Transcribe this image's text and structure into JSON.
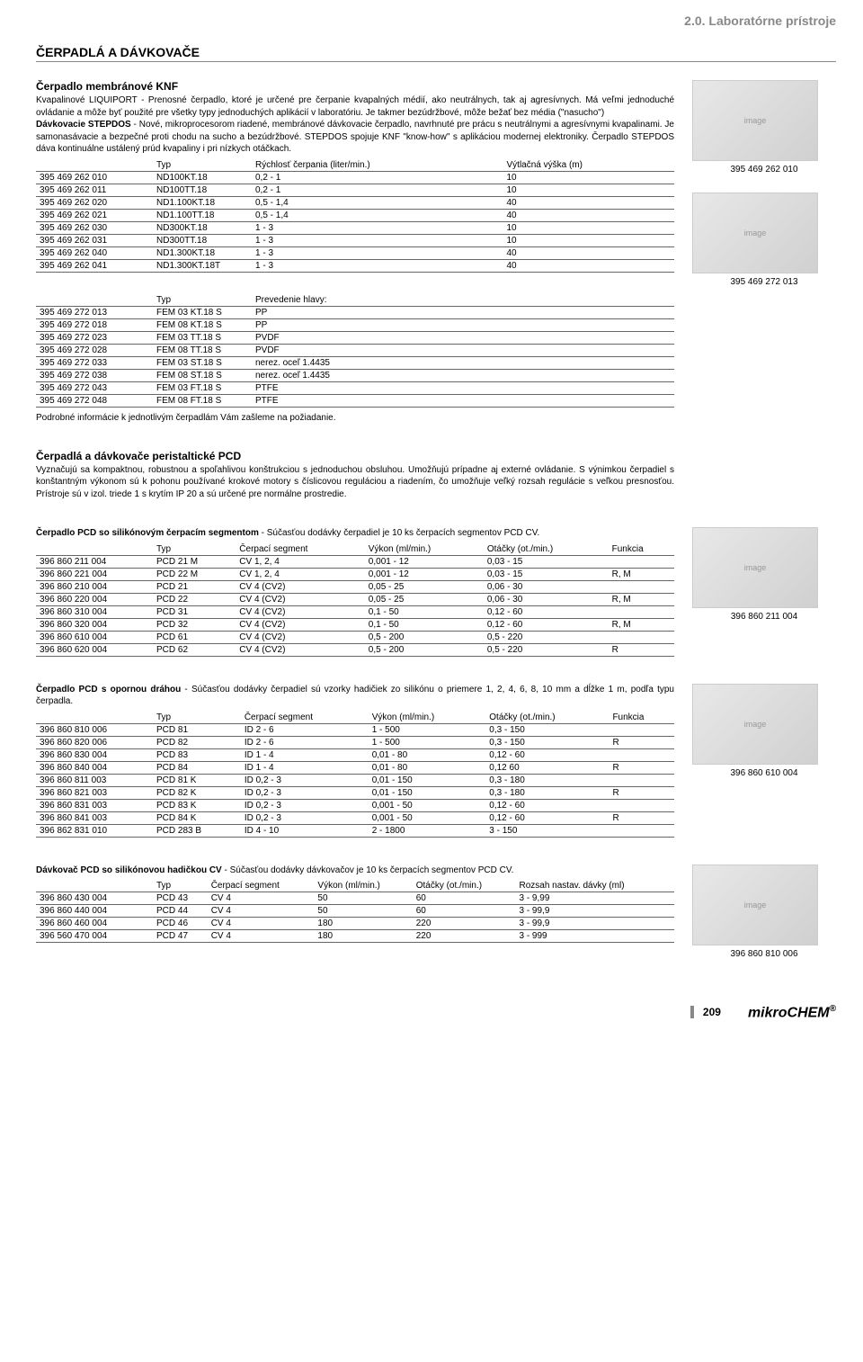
{
  "header": {
    "breadcrumb": "2.0. Laboratórne prístroje"
  },
  "title": "ČERPADLÁ A DÁVKOVAČE",
  "section1": {
    "heading": "Čerpadlo membránové KNF",
    "text": "Kvapalinové LIQUIPORT - Prenosné čerpadlo, ktoré je určené pre čerpanie kvapalných médií, ako neutrálnych, tak aj agresívnych. Má veľmi jednoduché ovládanie a môže byť použité pre všetky typy jednoduchých aplikácií v laboratóriu. Je takmer bezúdržbové, môže bežať bez média (\"nasucho\")",
    "text2b": "Dávkovacie STEPDOS",
    "text2": " - Nové, mikroprocesorom riadené, membránové dávkovacie čerpadlo, navrhnuté pre prácu s neutrálnymi a agresívnymi kvapalinami. Je samonasávacie a bezpečné proti chodu na sucho a bezúdržbové. STEPDOS spojuje KNF \"know-how\" s aplikáciou modernej elektroniky. Čerpadlo STEPDOS dáva kontinuálne ustálený prúd kvapaliny i pri nízkych otáčkach.",
    "table1": {
      "headers": [
        "",
        "Typ",
        "Rýchlosť čerpania (liter/min.)",
        "Výtlačná výška (m)"
      ],
      "rows": [
        [
          "395 469 262 010",
          "ND100KT.18",
          "0,2 - 1",
          "10"
        ],
        [
          "395 469 262 011",
          "ND100TT.18",
          "0,2 - 1",
          "10"
        ],
        [
          "395 469 262 020",
          "ND1.100KT.18",
          "0,5 - 1,4",
          "40"
        ],
        [
          "395 469 262 021",
          "ND1.100TT.18",
          "0,5 - 1,4",
          "40"
        ],
        [
          "395 469 262 030",
          "ND300KT.18",
          "1 - 3",
          "10"
        ],
        [
          "395 469 262 031",
          "ND300TT.18",
          "1 - 3",
          "10"
        ],
        [
          "395 469 262 040",
          "ND1.300KT.18",
          "1 - 3",
          "40"
        ],
        [
          "395 469 262 041",
          "ND1.300KT.18T",
          "1 - 3",
          "40"
        ]
      ]
    },
    "table2": {
      "headers": [
        "",
        "Typ",
        "Prevedenie hlavy:"
      ],
      "rows": [
        [
          "395 469 272 013",
          "FEM 03 KT.18 S",
          "PP"
        ],
        [
          "395 469 272 018",
          "FEM 08 KT.18 S",
          "PP"
        ],
        [
          "395 469 272 023",
          "FEM 03 TT.18 S",
          "PVDF"
        ],
        [
          "395 469 272 028",
          "FEM 08 TT.18 S",
          "PVDF"
        ],
        [
          "395 469 272 033",
          "FEM 03 ST.18 S",
          "nerez. oceľ 1.4435"
        ],
        [
          "395 469 272 038",
          "FEM 08 ST.18 S",
          "nerez. oceľ 1.4435"
        ],
        [
          "395 469 272 043",
          "FEM 03 FT.18 S",
          "PTFE"
        ],
        [
          "395 469 272 048",
          "FEM 08 FT.18 S",
          "PTFE"
        ]
      ]
    },
    "note": "Podrobné informácie k jednotlivým čerpadlám Vám zašleme na požiadanie.",
    "img1_caption": "395 469 262 010",
    "img2_caption": "395 469 272 013"
  },
  "section2": {
    "heading": "Čerpadlá a dávkovače peristaltické PCD",
    "text": "Vyznačujú sa kompaktnou, robustnou a spoľahlivou konštrukciou s jednoduchou obsluhou. Umožňujú prípadne aj externé ovládanie. S výnimkou čerpadiel s konštantným výkonom sú k pohonu používané krokové motory s číslicovou reguláciou a riadením, čo umožňuje veľký rozsah regulácie s veľkou presnosťou. Prístroje sú v izol. triede 1 s krytím IP 20 a sú určené pre normálne prostredie."
  },
  "section3": {
    "heading": "Čerpadlo PCD so silikónovým čerpacím segmentom",
    "suffix": " - Súčasťou dodávky čerpadiel je 10 ks čerpacích segmentov PCD CV.",
    "table": {
      "headers": [
        "",
        "Typ",
        "Čerpací segment",
        "Výkon (ml/min.)",
        "Otáčky (ot./min.)",
        "Funkcia"
      ],
      "rows": [
        [
          "396 860 211 004",
          "PCD 21 M",
          "CV 1, 2, 4",
          "0,001 - 12",
          "0,03 - 15",
          ""
        ],
        [
          "396 860 221 004",
          "PCD 22 M",
          "CV 1, 2, 4",
          "0,001 - 12",
          "0,03 - 15",
          "R, M"
        ],
        [
          "396 860 210 004",
          "PCD 21",
          "CV 4 (CV2)",
          "0,05 - 25",
          "0,06 - 30",
          ""
        ],
        [
          "396 860 220 004",
          "PCD 22",
          "CV 4 (CV2)",
          "0,05 - 25",
          "0,06 - 30",
          "R, M"
        ],
        [
          "396 860 310 004",
          "PCD 31",
          "CV 4 (CV2)",
          "0,1 - 50",
          "0,12 - 60",
          ""
        ],
        [
          "396 860 320 004",
          "PCD 32",
          "CV 4 (CV2)",
          "0,1 - 50",
          "0,12 - 60",
          "R, M"
        ],
        [
          "396 860 610 004",
          "PCD 61",
          "CV 4 (CV2)",
          "0,5 - 200",
          "0,5 - 220",
          ""
        ],
        [
          "396 860 620 004",
          "PCD 62",
          "CV 4 (CV2)",
          "0,5 - 200",
          "0,5 - 220",
          "R"
        ]
      ]
    },
    "img_caption": "396 860 211 004"
  },
  "section4": {
    "heading": "Čerpadlo PCD s opornou dráhou",
    "suffix": " - Súčasťou dodávky čerpadiel sú vzorky hadičiek zo silikónu o priemere 1, 2, 4, 6, 8, 10 mm a dĺžke 1 m, podľa typu čerpadla.",
    "table": {
      "headers": [
        "",
        "Typ",
        "Čerpací segment",
        "Výkon (ml/min.)",
        "Otáčky (ot./min.)",
        "Funkcia"
      ],
      "rows": [
        [
          "396 860 810 006",
          "PCD 81",
          "ID 2 - 6",
          "1 - 500",
          "0,3 - 150",
          ""
        ],
        [
          "396 860 820 006",
          "PCD 82",
          "ID 2 - 6",
          "1 - 500",
          "0,3 - 150",
          "R"
        ],
        [
          "396 860 830 004",
          "PCD 83",
          "ID 1 - 4",
          "0,01 - 80",
          "0,12 - 60",
          ""
        ],
        [
          "396 860 840 004",
          "PCD 84",
          "ID 1 - 4",
          "0,01 - 80",
          "0,12 60",
          "R"
        ],
        [
          "396 860 811 003",
          "PCD 81 K",
          "ID 0,2 - 3",
          "0,01 - 150",
          "0,3 - 180",
          ""
        ],
        [
          "396 860 821 003",
          "PCD 82 K",
          "ID 0,2 - 3",
          "0,01 - 150",
          "0,3 - 180",
          "R"
        ],
        [
          "396 860 831 003",
          "PCD 83 K",
          "ID 0,2 - 3",
          "0,001 - 50",
          "0,12 - 60",
          ""
        ],
        [
          "396 860 841 003",
          "PCD 84 K",
          "ID 0,2 - 3",
          "0,001 - 50",
          "0,12 - 60",
          "R"
        ],
        [
          "396 862 831 010",
          "PCD 283 B",
          "ID 4 - 10",
          "2 - 1800",
          "3 - 150",
          ""
        ]
      ]
    },
    "img_caption": "396 860 610 004"
  },
  "section5": {
    "heading": "Dávkovač PCD so silikónovou hadičkou CV",
    "suffix": " - Súčasťou dodávky dávkovačov je 10 ks čerpacích segmentov PCD CV.",
    "table": {
      "headers": [
        "",
        "Typ",
        "Čerpací segment",
        "Výkon (ml/min.)",
        "Otáčky (ot./min.)",
        "Rozsah nastav. dávky (ml)"
      ],
      "rows": [
        [
          "396 860 430 004",
          "PCD 43",
          "CV 4",
          "50",
          "60",
          "3 - 9,99"
        ],
        [
          "396 860 440 004",
          "PCD 44",
          "CV 4",
          "50",
          "60",
          "3 - 99,9"
        ],
        [
          "396 860 460 004",
          "PCD 46",
          "CV 4",
          "180",
          "220",
          "3 - 99,9"
        ],
        [
          "396 560 470 004",
          "PCD 47",
          "CV 4",
          "180",
          "220",
          "3 - 999"
        ]
      ]
    },
    "img_caption": "396 860 810 006"
  },
  "footer": {
    "page": "209",
    "logo": "mikroCHEM",
    "reg": "®"
  }
}
